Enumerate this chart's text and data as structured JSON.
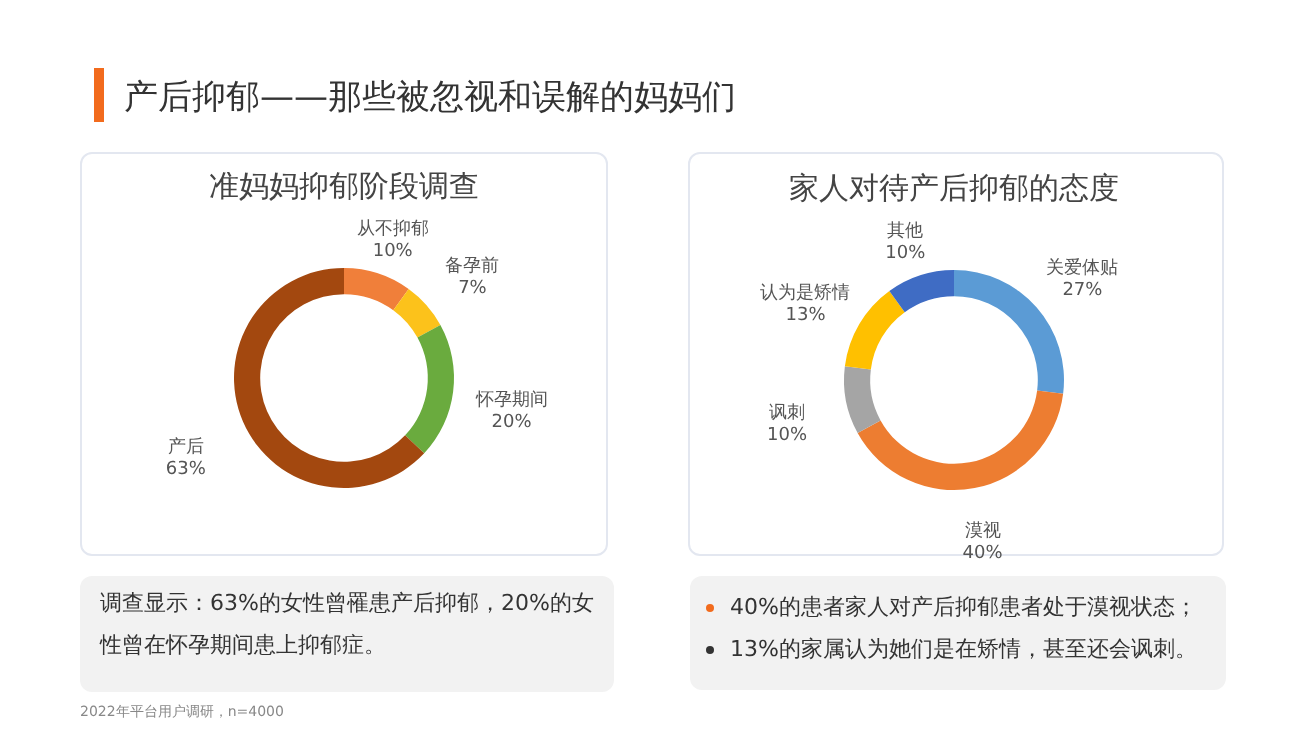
{
  "chart_data": [
    {
      "type": "donut",
      "title": "准妈妈抑郁阶段调查",
      "categories": [
        "从不抑郁",
        "备孕前",
        "怀孕期间",
        "产后"
      ],
      "values": [
        10,
        7,
        20,
        63
      ],
      "value_labels": [
        "10%",
        "7%",
        "20%",
        "63%"
      ],
      "colors": [
        "#f07f3a",
        "#fcc21b",
        "#6aab3e",
        "#a3480f"
      ],
      "annotations": [
        "产后抑郁——那些被忽视和误解的妈妈们",
        "调查显示：63%的女性曾罹患产后抑郁，20%的女性曾在怀孕期间患上抑郁症。",
        "2022年平台用户调研，n=4000"
      ]
    },
    {
      "type": "donut",
      "title": "家人对待产后抑郁的态度",
      "categories": [
        "关爱体贴",
        "漠视",
        "讽刺",
        "认为是矫情",
        "其他"
      ],
      "values": [
        27,
        40,
        10,
        13,
        10
      ],
      "value_labels": [
        "27%",
        "40%",
        "10%",
        "13%",
        "10%"
      ],
      "colors": [
        "#5b9bd5",
        "#ed7d31",
        "#a5a5a5",
        "#ffc000",
        "#3f6cc4"
      ],
      "annotations": [
        "40%的患者家人对产后抑郁患者处于漠视状态；",
        "13%的家属认为她们是在矫情，甚至还会讽刺。"
      ]
    }
  ]
}
